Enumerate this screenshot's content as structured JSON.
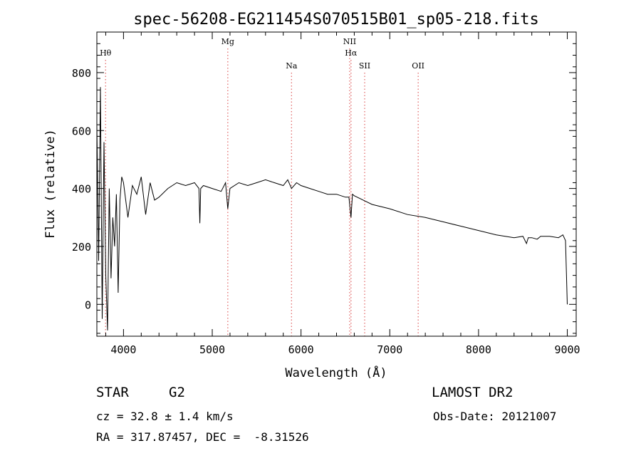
{
  "chart_data": {
    "type": "line",
    "title": "spec-56208-EG211454S070515B01_sp05-218.fits",
    "xlabel": "Wavelength (Å)",
    "ylabel": "Flux (relative)",
    "xlim": [
      3700,
      9100
    ],
    "ylim": [
      -110,
      940
    ],
    "x_ticks": [
      4000,
      5000,
      6000,
      7000,
      8000,
      9000
    ],
    "y_ticks": [
      0,
      200,
      400,
      600,
      800
    ],
    "grid": false,
    "line_color": "#000000",
    "marker_color": "#e06060",
    "lines": [
      {
        "name": "Hθ",
        "wavelength": 3798,
        "label_row": 1
      },
      {
        "name": "Mg",
        "wavelength": 5175,
        "label_row": 0
      },
      {
        "name": "Na",
        "wavelength": 5893,
        "label_row": 2
      },
      {
        "name": "NII",
        "wavelength": 6548,
        "label_row": 0
      },
      {
        "name": "Hα",
        "wavelength": 6563,
        "label_row": 1
      },
      {
        "name": "SII",
        "wavelength": 6717,
        "label_row": 2
      },
      {
        "name": "OII",
        "wavelength": 7320,
        "label_row": 2
      }
    ],
    "series": [
      {
        "x": [
          3700,
          3720,
          3740,
          3760,
          3780,
          3800,
          3820,
          3840,
          3860,
          3880,
          3900,
          3920,
          3940,
          3960,
          3980,
          4000,
          4050,
          4100,
          4150,
          4200,
          4250,
          4300,
          4350,
          4400,
          4500,
          4600,
          4700,
          4800,
          4850,
          4860,
          4870,
          4900,
          5000,
          5100,
          5150,
          5175,
          5200,
          5300,
          5400,
          5500,
          5600,
          5700,
          5800,
          5850,
          5893,
          5950,
          6000,
          6100,
          6200,
          6300,
          6400,
          6500,
          6540,
          6563,
          6580,
          6600,
          6700,
          6800,
          7000,
          7200,
          7400,
          7600,
          7800,
          8000,
          8200,
          8400,
          8500,
          8540,
          8560,
          8600,
          8660,
          8700,
          8800,
          8900,
          8950,
          8980,
          9000
        ],
        "y": [
          620,
          150,
          750,
          -50,
          560,
          100,
          -90,
          400,
          90,
          300,
          200,
          380,
          40,
          360,
          440,
          420,
          300,
          410,
          380,
          440,
          310,
          420,
          360,
          370,
          400,
          420,
          410,
          420,
          400,
          280,
          400,
          410,
          400,
          390,
          420,
          330,
          400,
          420,
          410,
          420,
          430,
          420,
          410,
          430,
          400,
          420,
          410,
          400,
          390,
          380,
          380,
          370,
          370,
          300,
          380,
          375,
          360,
          345,
          330,
          310,
          300,
          285,
          270,
          255,
          240,
          230,
          235,
          210,
          230,
          230,
          225,
          235,
          235,
          230,
          240,
          220,
          0
        ]
      }
    ]
  },
  "info": {
    "object_class": "STAR",
    "subclass": "G2",
    "survey": "LAMOST DR2",
    "velocity": "cz = 32.8 ± 1.4 km/s",
    "obs_date": "Obs-Date: 20121007",
    "coords": "RA = 317.87457, DEC =  -8.31526"
  }
}
